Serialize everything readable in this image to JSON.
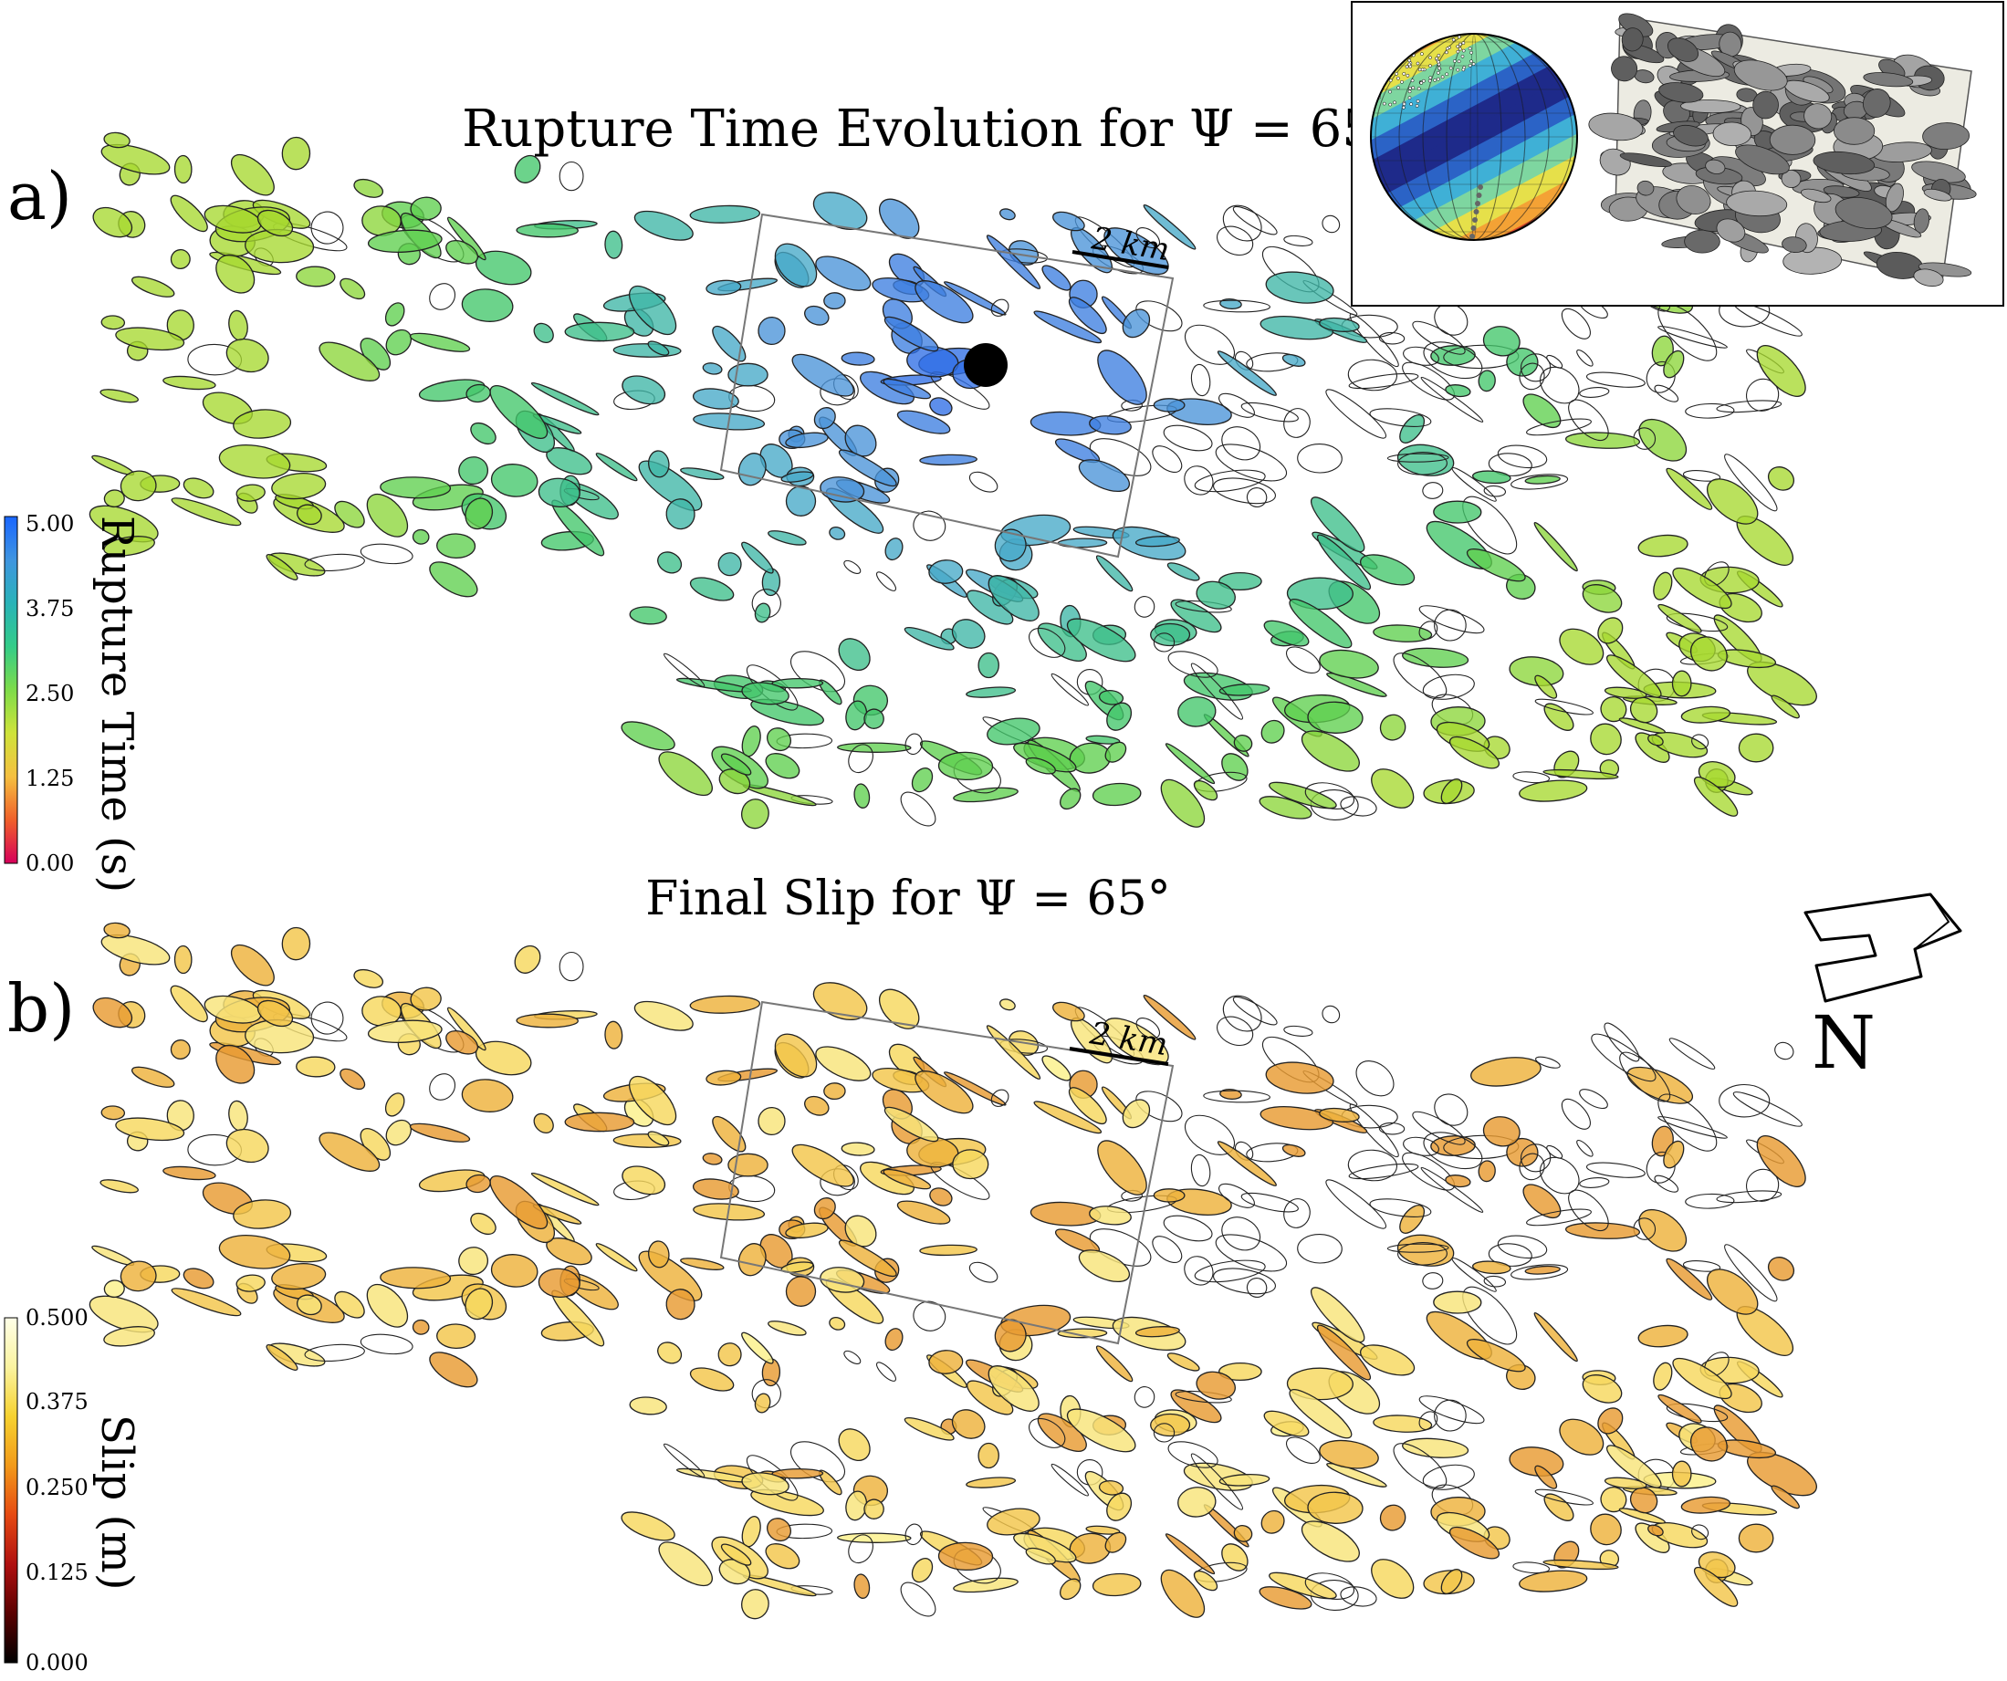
{
  "panel_a": {
    "label": "a)",
    "title": "Rupture Time Evolution for Ψ = 65°",
    "scale_bar": "2 km",
    "colorbar": {
      "label": "Rupture Time (s)",
      "ticks": [
        "5.00",
        "3.75",
        "2.50",
        "1.25",
        "0.00"
      ],
      "colors": [
        "#d6005a",
        "#f0602a",
        "#f5c040",
        "#cfe33a",
        "#7edc4a",
        "#33cc88",
        "#29b3b8",
        "#3f95e0",
        "#1a66ff"
      ]
    }
  },
  "panel_b": {
    "label": "b)",
    "title": "Final Slip for Ψ = 65°",
    "scale_bar": "2 km",
    "colorbar": {
      "label": "Slip (m)",
      "ticks": [
        "0.500",
        "0.375",
        "0.250",
        "0.125",
        "0.000"
      ],
      "colors": [
        "#000000",
        "#5a0000",
        "#b01010",
        "#e64a12",
        "#f29a1a",
        "#f6d230",
        "#fbf3a0",
        "#ffffe8"
      ]
    }
  },
  "north_arrow": {
    "label": "N"
  },
  "colors": {
    "rupture_palette": [
      "#a6d930",
      "#8cd63a",
      "#5fd04e",
      "#42c76a",
      "#3dbf8a",
      "#3fb6a6",
      "#47a9c8",
      "#4a93d8",
      "#3d7fe0",
      "#2f6ee6"
    ],
    "slip_palette": [
      "#fbf08a",
      "#f8e47a",
      "#f6d85e",
      "#f3c64a",
      "#eeb23c",
      "#e89b32"
    ],
    "inset_stereonet": [
      "#1e2a8a",
      "#2b63c6",
      "#3fb0d6",
      "#7ed6a0",
      "#e6e04a",
      "#f4a235",
      "#e04a2a"
    ],
    "inset_fractures": "#7a7a7a"
  }
}
